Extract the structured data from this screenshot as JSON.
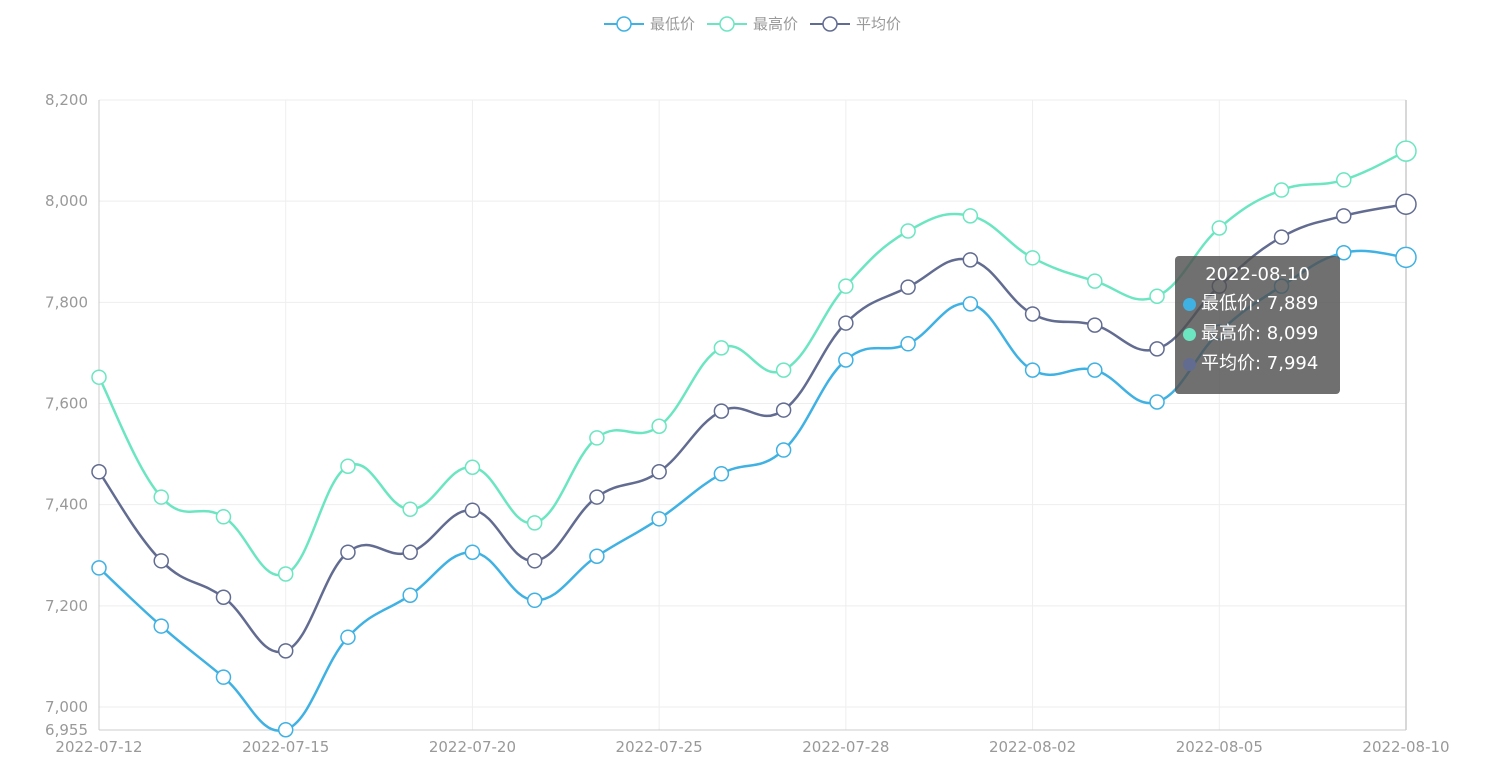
{
  "chart_data": {
    "type": "line",
    "smooth": true,
    "categories": [
      "2022-07-12",
      "2022-07-13",
      "2022-07-14",
      "2022-07-15",
      "2022-07-18",
      "2022-07-19",
      "2022-07-20",
      "2022-07-21",
      "2022-07-22",
      "2022-07-25",
      "2022-07-26",
      "2022-07-27",
      "2022-07-28",
      "2022-07-29",
      "2022-08-01",
      "2022-08-02",
      "2022-08-03",
      "2022-08-04",
      "2022-08-05",
      "2022-08-08",
      "2022-08-09",
      "2022-08-10"
    ],
    "x_tick_labels": [
      "2022-07-12",
      "2022-07-15",
      "2022-07-20",
      "2022-07-25",
      "2022-07-28",
      "2022-08-02",
      "2022-08-05",
      "2022-08-10"
    ],
    "y_tick_labels": [
      "8,200",
      "8,000",
      "7,800",
      "7,600",
      "7,400",
      "7,200",
      "7,000",
      "6,955"
    ],
    "ylim": [
      6955,
      8200
    ],
    "grid": true,
    "legend_position": "top-center",
    "series": [
      {
        "name": "最低价",
        "color": "#3fb1e3",
        "values": [
          7275,
          7160,
          7059,
          6955,
          7138,
          7221,
          7306,
          7211,
          7298,
          7372,
          7461,
          7508,
          7686,
          7718,
          7797,
          7666,
          7666,
          7603,
          7741,
          7832,
          7898,
          7889
        ]
      },
      {
        "name": "最高价",
        "color": "#6be6c1",
        "values": [
          7652,
          7415,
          7376,
          7263,
          7476,
          7391,
          7474,
          7364,
          7532,
          7555,
          7710,
          7666,
          7832,
          7941,
          7971,
          7888,
          7842,
          7812,
          7947,
          8022,
          8042,
          8099
        ]
      },
      {
        "name": "平均价",
        "color": "#626c91",
        "values": [
          7465,
          7289,
          7217,
          7111,
          7306,
          7306,
          7389,
          7289,
          7415,
          7465,
          7585,
          7587,
          7759,
          7830,
          7884,
          7777,
          7755,
          7708,
          7832,
          7929,
          7971,
          7994
        ]
      }
    ]
  },
  "tooltip": {
    "title": "2022-08-10",
    "rows": [
      {
        "label": "最低价: 7,889",
        "color": "#3fb1e3"
      },
      {
        "label": "最高价: 8,099",
        "color": "#6be6c1"
      },
      {
        "label": "平均价: 7,994",
        "color": "#626c91"
      }
    ]
  }
}
